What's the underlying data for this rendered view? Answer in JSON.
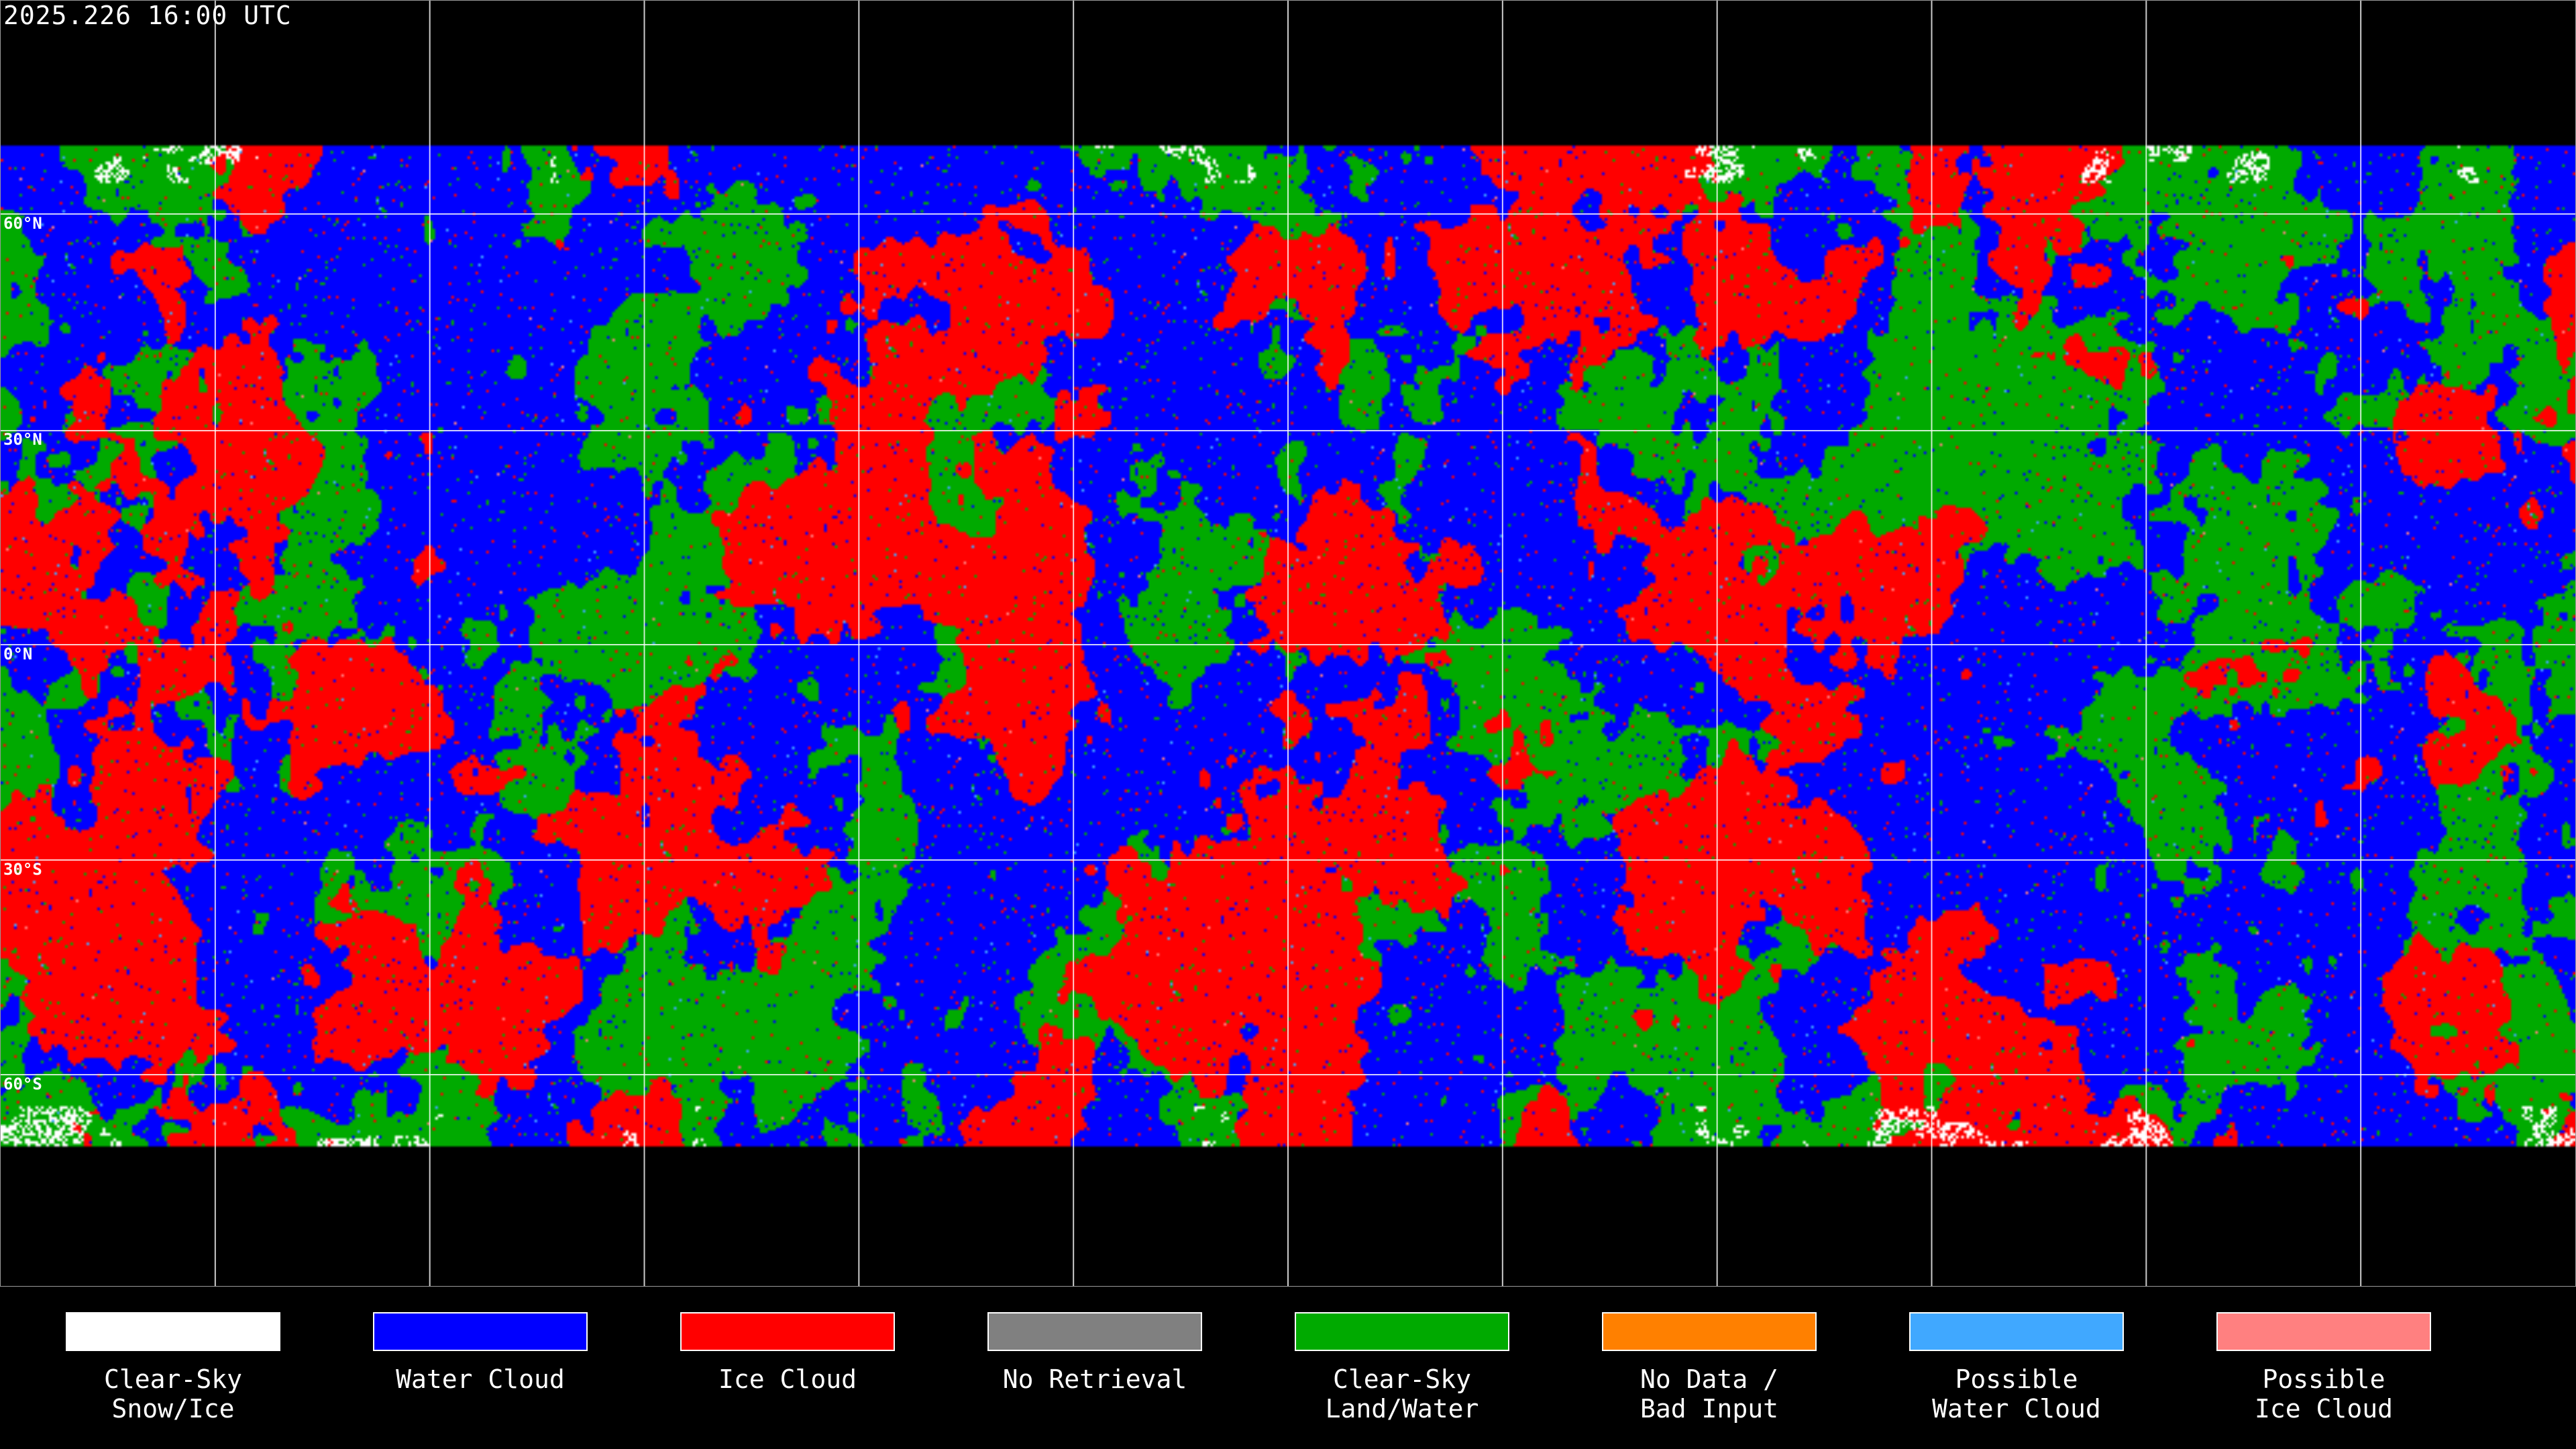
{
  "title": "2025.226 16:00 UTC",
  "latitude_labels": [
    "60°N",
    "30°N",
    "0°N",
    "30°S",
    "60°S"
  ],
  "legend": [
    {
      "label": "Clear-Sky\nSnow/Ice",
      "color": "#ffffff"
    },
    {
      "label": "Water Cloud",
      "color": "#0000ff"
    },
    {
      "label": "Ice Cloud",
      "color": "#ff0000"
    },
    {
      "label": "No Retrieval",
      "color": "#808080"
    },
    {
      "label": "Clear-Sky\nLand/Water",
      "color": "#00aa00"
    },
    {
      "label": "No Data /\nBad Input",
      "color": "#ff8000"
    },
    {
      "label": "Possible\nWater Cloud",
      "color": "#40a8ff"
    },
    {
      "label": "Possible\nIce Cloud",
      "color": "#ff8080"
    }
  ],
  "map": {
    "projection": "equirectangular",
    "gridlines": "every 30 degrees",
    "gridline_color": "#ffffff",
    "coastline_color": "#ffffff",
    "background_color": "#000000"
  }
}
